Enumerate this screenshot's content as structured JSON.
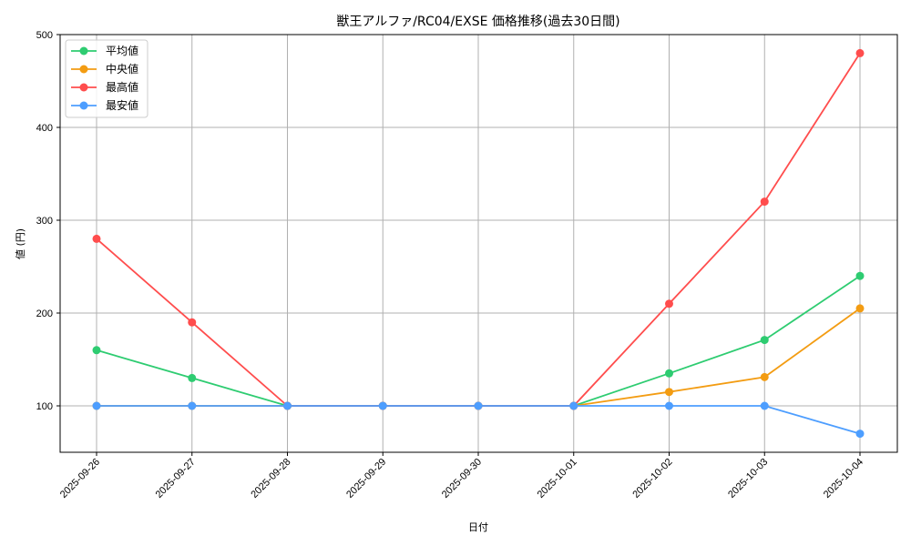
{
  "chart_data": {
    "type": "line",
    "title": "獣王アルファ/RC04/EXSE 価格推移(過去30日間)",
    "xlabel": "日付",
    "ylabel": "値 (円)",
    "categories": [
      "2025-09-26",
      "2025-09-27",
      "2025-09-28",
      "2025-09-29",
      "2025-09-30",
      "2025-10-01",
      "2025-10-02",
      "2025-10-03",
      "2025-10-04"
    ],
    "ylim": [
      50,
      500
    ],
    "yticks": [
      100,
      200,
      300,
      400,
      500
    ],
    "grid": true,
    "legend_position": "upper left",
    "series": [
      {
        "name": "平均値",
        "color": "#2ecc71",
        "values": [
          160,
          130,
          100,
          100,
          100,
          100,
          135,
          171,
          240
        ]
      },
      {
        "name": "中央値",
        "color": "#f39c12",
        "values": [
          100,
          100,
          100,
          100,
          100,
          100,
          115,
          131,
          205
        ]
      },
      {
        "name": "最高値",
        "color": "#ff4d4d",
        "values": [
          280,
          190,
          100,
          100,
          100,
          100,
          210,
          320,
          480
        ]
      },
      {
        "name": "最安値",
        "color": "#4d9eff",
        "values": [
          100,
          100,
          100,
          100,
          100,
          100,
          100,
          100,
          70
        ]
      }
    ]
  }
}
